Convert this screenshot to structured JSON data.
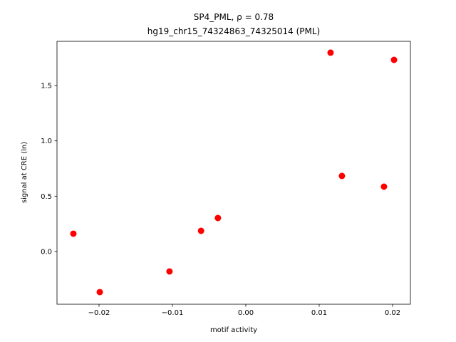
{
  "chart_data": {
    "type": "scatter",
    "title": "SP4_PML, ρ = 0.78",
    "subtitle": "hg19_chr15_74324863_74325014 (PML)",
    "x_label": "motif activity",
    "y_label": "signal at CRE (ln)",
    "color": "#ff0000",
    "x": [
      -0.0235,
      -0.0199,
      -0.0104,
      -0.0061,
      -0.0038,
      0.01155,
      0.0131,
      0.01883,
      0.0202
    ],
    "values": [
      0.161,
      -0.367,
      -0.18,
      0.187,
      0.303,
      1.797,
      0.683,
      0.586,
      1.732
    ],
    "xlim": [
      -0.02573,
      0.02243
    ],
    "ylim": [
      -0.4765,
      1.8995
    ],
    "xticks": [
      {
        "value": -0.02,
        "label": "−0.02"
      },
      {
        "value": -0.01,
        "label": "−0.01"
      },
      {
        "value": 0,
        "label": "0.00"
      },
      {
        "value": 0.01,
        "label": "0.01"
      },
      {
        "value": 0.02,
        "label": "0.02"
      }
    ],
    "yticks": [
      {
        "value": 0,
        "label": "0.0"
      },
      0.5,
      {
        "value": 1,
        "label": "1.0"
      },
      1.5
    ]
  }
}
